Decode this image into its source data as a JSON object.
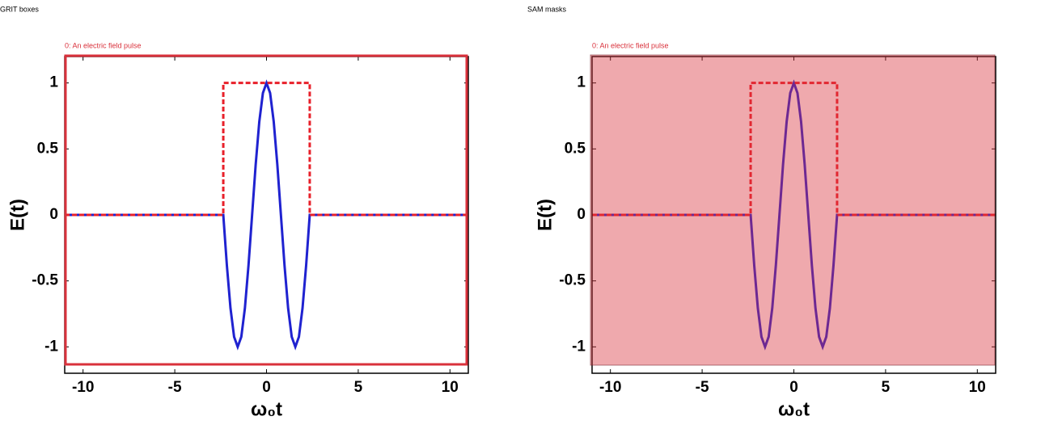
{
  "chart_data": [
    {
      "type": "line",
      "title": "GRIT boxes",
      "annotation": "0: An electric field pulse",
      "highlight": "box",
      "highlight_color": "#d9313b",
      "xlabel": "ω₀t",
      "ylabel": "E(t)",
      "xlim": [
        -11,
        11
      ],
      "ylim": [
        -1.2,
        1.2
      ],
      "xticks": [
        -10,
        -5,
        0,
        5,
        10
      ],
      "yticks": [
        -1,
        -0.5,
        0,
        0.5,
        1
      ],
      "series": [
        {
          "color": "#1f22d0",
          "style": "solid",
          "x": [
            -11,
            -2.356,
            -2.16,
            -1.963,
            -1.767,
            -1.571,
            -1.374,
            -1.178,
            -0.982,
            -0.785,
            -0.589,
            -0.393,
            -0.196,
            0,
            0.196,
            0.393,
            0.589,
            0.785,
            0.982,
            1.178,
            1.374,
            1.571,
            1.767,
            1.963,
            2.16,
            2.356,
            11
          ],
          "values": [
            0,
            0,
            -0.383,
            -0.707,
            -0.924,
            -1,
            -0.924,
            -0.707,
            -0.383,
            0,
            0.383,
            0.707,
            0.924,
            1,
            0.924,
            0.707,
            0.383,
            0,
            -0.383,
            -0.707,
            -0.924,
            -1,
            -0.924,
            -0.707,
            -0.383,
            0,
            0
          ]
        },
        {
          "color": "#e8202a",
          "style": "dashed",
          "x": [
            -11,
            -2.356,
            -2.356,
            2.356,
            2.356,
            11
          ],
          "values": [
            0,
            0,
            1,
            1,
            0,
            0
          ]
        }
      ]
    },
    {
      "type": "line",
      "title": "SAM masks",
      "annotation": "0: An electric field pulse",
      "highlight": "mask",
      "highlight_color": "#d9313b",
      "xlabel": "ω₀t",
      "ylabel": "E(t)",
      "xlim": [
        -11,
        11
      ],
      "ylim": [
        -1.2,
        1.2
      ],
      "xticks": [
        -10,
        -5,
        0,
        5,
        10
      ],
      "yticks": [
        -1,
        -0.5,
        0,
        0.5,
        1
      ],
      "series": [
        {
          "color": "#1f22d0",
          "style": "solid",
          "x": [
            -11,
            -2.356,
            -2.16,
            -1.963,
            -1.767,
            -1.571,
            -1.374,
            -1.178,
            -0.982,
            -0.785,
            -0.589,
            -0.393,
            -0.196,
            0,
            0.196,
            0.393,
            0.589,
            0.785,
            0.982,
            1.178,
            1.374,
            1.571,
            1.767,
            1.963,
            2.16,
            2.356,
            11
          ],
          "values": [
            0,
            0,
            -0.383,
            -0.707,
            -0.924,
            -1,
            -0.924,
            -0.707,
            -0.383,
            0,
            0.383,
            0.707,
            0.924,
            1,
            0.924,
            0.707,
            0.383,
            0,
            -0.383,
            -0.707,
            -0.924,
            -1,
            -0.924,
            -0.707,
            -0.383,
            0,
            0
          ]
        },
        {
          "color": "#e8202a",
          "style": "dashed",
          "x": [
            -11,
            -2.356,
            -2.356,
            2.356,
            2.356,
            11
          ],
          "values": [
            0,
            0,
            1,
            1,
            0,
            0
          ]
        }
      ]
    }
  ]
}
